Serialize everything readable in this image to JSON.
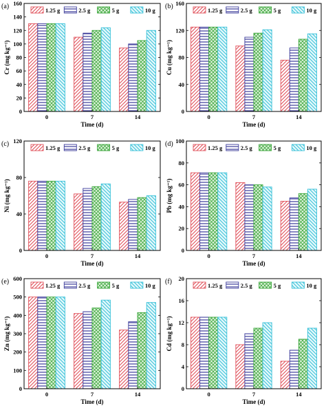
{
  "legend": [
    "1.25 g",
    "2.5 g",
    "5 g",
    "10 g"
  ],
  "colors": {
    "series": [
      "#e0505a",
      "#3a3a9a",
      "#3aa63a",
      "#36c0d8"
    ]
  },
  "chart_data": [
    {
      "type": "bar",
      "panel_label": "(a)",
      "categories": [
        "0",
        "7",
        "14"
      ],
      "xlabel": "Time (d)",
      "ylabel": "Cr (mg kg⁻¹)",
      "ylim": [
        0,
        160
      ],
      "yticks": [
        0,
        20,
        40,
        60,
        80,
        100,
        120,
        140,
        160
      ],
      "legend_position": "top",
      "series": [
        {
          "name": "1.25 g",
          "values": [
            130,
            110,
            94
          ]
        },
        {
          "name": "2.5 g",
          "values": [
            130,
            116,
            100
          ]
        },
        {
          "name": "5 g",
          "values": [
            130,
            120,
            105
          ]
        },
        {
          "name": "10 g",
          "values": [
            130,
            124,
            120
          ]
        }
      ]
    },
    {
      "type": "bar",
      "panel_label": "(b)",
      "categories": [
        "0",
        "7",
        "14"
      ],
      "xlabel": "Time (d)",
      "ylabel": "Cu (mg kg⁻¹)",
      "ylim": [
        0,
        160
      ],
      "yticks": [
        0,
        40,
        80,
        120,
        160
      ],
      "legend_position": "top",
      "series": [
        {
          "name": "1.25 g",
          "values": [
            125,
            97,
            76
          ]
        },
        {
          "name": "2.5 g",
          "values": [
            125,
            110,
            94
          ]
        },
        {
          "name": "5 g",
          "values": [
            125,
            116,
            107
          ]
        },
        {
          "name": "10 g",
          "values": [
            125,
            121,
            115
          ]
        }
      ]
    },
    {
      "type": "bar",
      "panel_label": "(c)",
      "categories": [
        "0",
        "7",
        "14"
      ],
      "xlabel": "Time (d)",
      "ylabel": "Ni (mg kg⁻¹)",
      "ylim": [
        0,
        120
      ],
      "yticks": [
        0,
        40,
        80,
        120
      ],
      "legend_position": "top",
      "series": [
        {
          "name": "1.25 g",
          "values": [
            76,
            62,
            53
          ]
        },
        {
          "name": "2.5 g",
          "values": [
            76,
            68,
            56
          ]
        },
        {
          "name": "5 g",
          "values": [
            76,
            70,
            58
          ]
        },
        {
          "name": "10 g",
          "values": [
            76,
            73,
            60
          ]
        }
      ]
    },
    {
      "type": "bar",
      "panel_label": "(d)",
      "categories": [
        "0",
        "7",
        "14"
      ],
      "xlabel": "Time (d)",
      "ylabel": "Pb (mg kg⁻¹)",
      "ylim": [
        0,
        100
      ],
      "yticks": [
        0,
        20,
        40,
        60,
        80,
        100
      ],
      "legend_position": "top",
      "series": [
        {
          "name": "1.25 g",
          "values": [
            71,
            62,
            45
          ]
        },
        {
          "name": "2.5 g",
          "values": [
            71,
            60,
            48
          ]
        },
        {
          "name": "5 g",
          "values": [
            71,
            60,
            52
          ]
        },
        {
          "name": "10 g",
          "values": [
            71,
            58,
            56
          ]
        }
      ]
    },
    {
      "type": "bar",
      "panel_label": "(e)",
      "categories": [
        "0",
        "7",
        "14"
      ],
      "xlabel": "Time (d)",
      "ylabel": "Zn (mg kg⁻¹)",
      "ylim": [
        0,
        600
      ],
      "yticks": [
        0,
        100,
        200,
        300,
        400,
        500,
        600
      ],
      "legend_position": "top",
      "series": [
        {
          "name": "1.25 g",
          "values": [
            500,
            410,
            320
          ]
        },
        {
          "name": "2.5 g",
          "values": [
            500,
            420,
            365
          ]
        },
        {
          "name": "5 g",
          "values": [
            500,
            440,
            415
          ]
        },
        {
          "name": "10 g",
          "values": [
            500,
            483,
            470
          ]
        }
      ]
    },
    {
      "type": "bar",
      "panel_label": "(f)",
      "categories": [
        "0",
        "7",
        "14"
      ],
      "xlabel": "Time (d)",
      "ylabel": "Cd (mg kg⁻¹)",
      "ylim": [
        0,
        20
      ],
      "yticks": [
        0,
        4,
        8,
        12,
        16,
        20
      ],
      "legend_position": "top",
      "series": [
        {
          "name": "1.25 g",
          "values": [
            13,
            8,
            5
          ]
        },
        {
          "name": "2.5 g",
          "values": [
            13,
            10,
            7
          ]
        },
        {
          "name": "5 g",
          "values": [
            13,
            11,
            9
          ]
        },
        {
          "name": "10 g",
          "values": [
            13,
            12,
            11
          ]
        }
      ]
    }
  ]
}
